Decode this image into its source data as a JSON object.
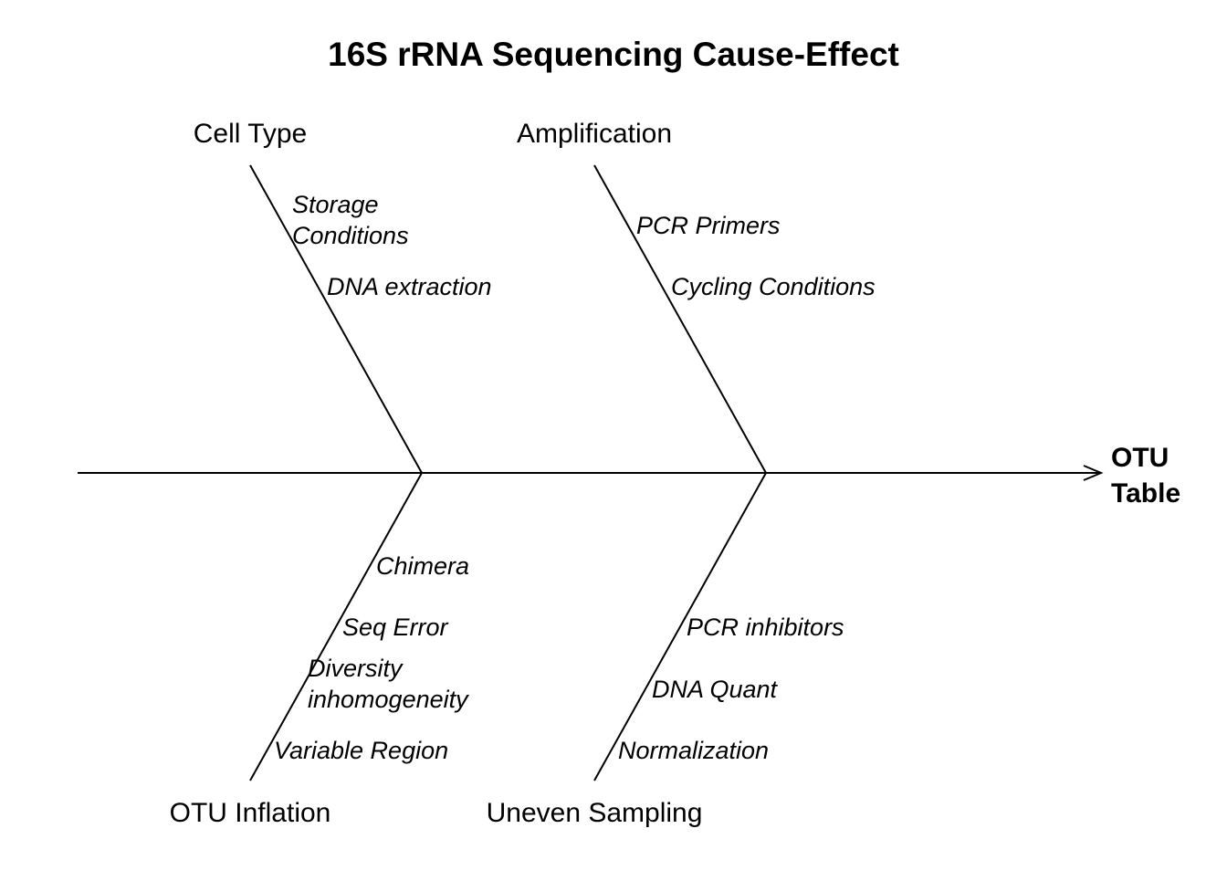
{
  "title": "16S rRNA Sequencing Cause-Effect",
  "effect": [
    "OTU",
    "Table"
  ],
  "colors": {
    "line": "#000000",
    "text": "#000000",
    "background": "#ffffff"
  },
  "categories": [
    {
      "id": "cell-type",
      "label": "Cell Type",
      "side": "top",
      "causes": [
        [
          "Storage",
          "Conditions"
        ],
        [
          "DNA extraction"
        ]
      ]
    },
    {
      "id": "amplification",
      "label": "Amplification",
      "side": "top",
      "causes": [
        [
          "PCR Primers"
        ],
        [
          "Cycling Conditions"
        ]
      ]
    },
    {
      "id": "otu-inflation",
      "label": "OTU Inflation",
      "side": "bottom",
      "causes": [
        [
          "Chimera"
        ],
        [
          "Seq Error"
        ],
        [
          "Diversity",
          "inhomogeneity"
        ],
        [
          "Variable Region"
        ]
      ]
    },
    {
      "id": "uneven-sampling",
      "label": "Uneven Sampling",
      "side": "bottom",
      "causes": [
        [
          "PCR inhibitors"
        ],
        [
          "DNA Quant"
        ],
        [
          "Normalization"
        ]
      ]
    }
  ]
}
